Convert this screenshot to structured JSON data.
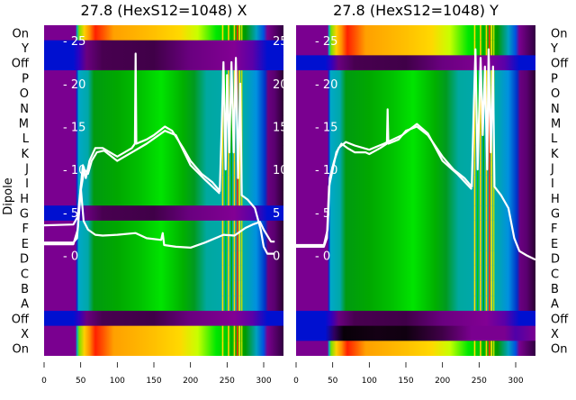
{
  "chart_data": [
    {
      "type": "heatmap",
      "title": "27.8 (HexS12=1048) X",
      "ylabel": "Dipole",
      "row_labels": [
        "On",
        "Y",
        "Off",
        "P",
        "O",
        "N",
        "M",
        "L",
        "K",
        "J",
        "I",
        "H",
        "G",
        "F",
        "E",
        "D",
        "C",
        "B",
        "A",
        "Off",
        "X",
        "On"
      ],
      "row_types": [
        "on",
        "off",
        "off",
        "dip",
        "dip",
        "dip",
        "dip",
        "dip",
        "dip",
        "dip",
        "dip",
        "dip",
        "off",
        "dip",
        "dip",
        "dip",
        "dip",
        "dip",
        "dip",
        "off",
        "on",
        "on"
      ],
      "xlim": [
        0,
        327
      ],
      "xticks": [
        "0",
        "50",
        "100",
        "150",
        "200",
        "250",
        "300"
      ],
      "overlay_ylim": [
        -11.7,
        26.8
      ],
      "overlay_yticks": [
        "0",
        "5",
        "10",
        "15",
        "20",
        "25"
      ],
      "series": [
        {
          "name": "trace-main",
          "points": [
            [
              0,
              1.5
            ],
            [
              40,
              1.5
            ],
            [
              45,
              2
            ],
            [
              50,
              8
            ],
            [
              53,
              10.5
            ],
            [
              57,
              9
            ],
            [
              62,
              11
            ],
            [
              70,
              12.5
            ],
            [
              80,
              12.5
            ],
            [
              90,
              12
            ],
            [
              100,
              11.5
            ],
            [
              110,
              12
            ],
            [
              120,
              12.5
            ],
            [
              124,
              13
            ],
            [
              125,
              23.5
            ],
            [
              126,
              13
            ],
            [
              140,
              13.5
            ],
            [
              150,
              14
            ],
            [
              165,
              15
            ],
            [
              175,
              14.5
            ],
            [
              190,
              12.5
            ],
            [
              200,
              11
            ],
            [
              215,
              9.5
            ],
            [
              230,
              8.5
            ],
            [
              240,
              7.5
            ],
            [
              243,
              16
            ],
            [
              245,
              22.5
            ],
            [
              248,
              10
            ],
            [
              250,
              21
            ],
            [
              253,
              12
            ],
            [
              256,
              22.5
            ],
            [
              259,
              12
            ],
            [
              262,
              23
            ],
            [
              265,
              9
            ],
            [
              268,
              20
            ],
            [
              270,
              7
            ],
            [
              278,
              6.5
            ],
            [
              288,
              5.5
            ],
            [
              296,
              3
            ],
            [
              300,
              1
            ],
            [
              305,
              0.2
            ],
            [
              315,
              0.2
            ]
          ]
        },
        {
          "name": "trace-band",
          "points": [
            [
              0,
              1.3
            ],
            [
              40,
              1.3
            ],
            [
              46,
              3
            ],
            [
              50,
              7.5
            ],
            [
              55,
              10
            ],
            [
              60,
              9.5
            ],
            [
              65,
              11
            ],
            [
              72,
              12
            ],
            [
              82,
              12.2
            ],
            [
              100,
              11
            ],
            [
              120,
              12
            ],
            [
              140,
              13
            ],
            [
              165,
              14.5
            ],
            [
              180,
              14
            ],
            [
              200,
              10.5
            ],
            [
              220,
              8.8
            ],
            [
              240,
              7.2
            ]
          ]
        },
        {
          "name": "trace-low",
          "points": [
            [
              0,
              3.5
            ],
            [
              40,
              3.6
            ],
            [
              46,
              4.5
            ],
            [
              50,
              8
            ],
            [
              54,
              4
            ],
            [
              60,
              3
            ],
            [
              70,
              2.4
            ],
            [
              80,
              2.3
            ],
            [
              100,
              2.4
            ],
            [
              125,
              2.6
            ],
            [
              140,
              2
            ],
            [
              160,
              1.8
            ],
            [
              162,
              2.6
            ],
            [
              164,
              1.2
            ],
            [
              180,
              1
            ],
            [
              200,
              0.9
            ],
            [
              220,
              1.5
            ],
            [
              245,
              2.4
            ],
            [
              260,
              2.3
            ],
            [
              275,
              3.2
            ],
            [
              285,
              3.6
            ],
            [
              295,
              3.9
            ],
            [
              300,
              3
            ],
            [
              310,
              1.6
            ],
            [
              315,
              1.6
            ]
          ]
        }
      ]
    },
    {
      "type": "heatmap",
      "title": "27.8 (HexS12=1048) Y",
      "row_labels": [
        "On",
        "Y",
        "Off",
        "P",
        "O",
        "N",
        "M",
        "L",
        "K",
        "J",
        "I",
        "H",
        "G",
        "F",
        "E",
        "D",
        "C",
        "B",
        "A",
        "Off",
        "X",
        "On"
      ],
      "row_types": [
        "on",
        "on",
        "off",
        "dip",
        "dip",
        "dip",
        "dip",
        "dip",
        "dip",
        "dip",
        "dip",
        "dip",
        "dip",
        "dip",
        "dip",
        "dip",
        "dip",
        "dip",
        "dip",
        "off",
        "offdark",
        "on"
      ],
      "xlim": [
        0,
        327
      ],
      "xticks": [
        "0",
        "50",
        "100",
        "150",
        "200",
        "250",
        "300"
      ],
      "overlay_ylim": [
        -11.7,
        26.8
      ],
      "overlay_yticks": [
        "0",
        "5",
        "10",
        "15",
        "20",
        "25"
      ],
      "series": [
        {
          "name": "trace-main",
          "points": [
            [
              0,
              1
            ],
            [
              38,
              1
            ],
            [
              42,
              2
            ],
            [
              45,
              8
            ],
            [
              50,
              10
            ],
            [
              55,
              12
            ],
            [
              62,
              13
            ],
            [
              70,
              12.5
            ],
            [
              80,
              12
            ],
            [
              95,
              12
            ],
            [
              100,
              11.8
            ],
            [
              115,
              12.5
            ],
            [
              124,
              13
            ],
            [
              125,
              17
            ],
            [
              126,
              13
            ],
            [
              140,
              13.5
            ],
            [
              150,
              14.5
            ],
            [
              165,
              15
            ],
            [
              180,
              14
            ],
            [
              200,
              11.5
            ],
            [
              215,
              10
            ],
            [
              230,
              9
            ],
            [
              240,
              8
            ],
            [
              243,
              18
            ],
            [
              245,
              24
            ],
            [
              248,
              10
            ],
            [
              252,
              23
            ],
            [
              255,
              14
            ],
            [
              258,
              22
            ],
            [
              261,
              10
            ],
            [
              263,
              24
            ],
            [
              266,
              12
            ],
            [
              269,
              22
            ],
            [
              271,
              8
            ],
            [
              280,
              7
            ],
            [
              290,
              5.5
            ],
            [
              298,
              2
            ],
            [
              305,
              0.5
            ],
            [
              315,
              0
            ],
            [
              327,
              -0.5
            ]
          ]
        },
        {
          "name": "trace-band",
          "points": [
            [
              0,
              1.2
            ],
            [
              38,
              1.2
            ],
            [
              43,
              3
            ],
            [
              46,
              9
            ],
            [
              52,
              11
            ],
            [
              58,
              12.5
            ],
            [
              68,
              13.2
            ],
            [
              80,
              12.8
            ],
            [
              100,
              12.3
            ],
            [
              120,
              13
            ],
            [
              145,
              14
            ],
            [
              165,
              15.3
            ],
            [
              180,
              14.2
            ],
            [
              200,
              11
            ],
            [
              220,
              9.5
            ],
            [
              240,
              7.7
            ]
          ]
        }
      ]
    }
  ]
}
